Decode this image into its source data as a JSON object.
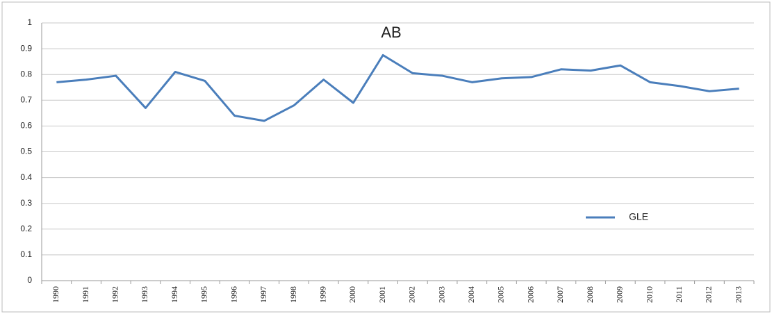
{
  "chart_data": {
    "type": "line",
    "title": "AB",
    "categories": [
      "1990",
      "1991",
      "1992",
      "1993",
      "1994",
      "1995",
      "1996",
      "1997",
      "1998",
      "1999",
      "2000",
      "2001",
      "2002",
      "2003",
      "2004",
      "2005",
      "2006",
      "2007",
      "2008",
      "2009",
      "2010",
      "2011",
      "2012",
      "2013"
    ],
    "series": [
      {
        "name": "GLE",
        "color": "#4a7ebb",
        "values": [
          0.77,
          0.78,
          0.795,
          0.67,
          0.81,
          0.775,
          0.64,
          0.62,
          0.68,
          0.78,
          0.69,
          0.875,
          0.805,
          0.795,
          0.77,
          0.785,
          0.79,
          0.82,
          0.815,
          0.835,
          0.77,
          0.755,
          0.735,
          0.745
        ]
      }
    ],
    "ylim": [
      0,
      1
    ],
    "yticks": [
      0,
      0.1,
      0.2,
      0.3,
      0.4,
      0.5,
      0.6,
      0.7,
      0.8,
      0.9,
      1
    ],
    "grid": true,
    "legend": "right"
  }
}
